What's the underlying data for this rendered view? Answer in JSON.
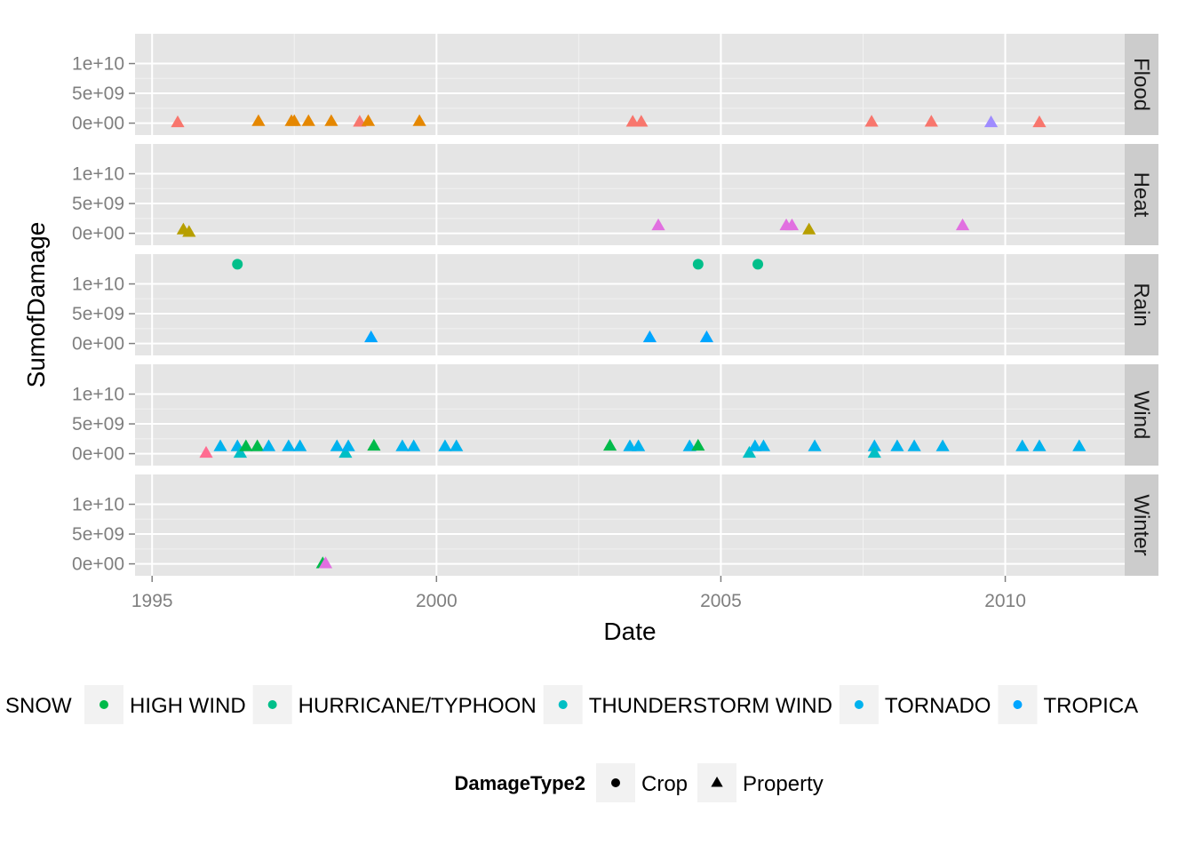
{
  "chart_data": {
    "type": "scatter",
    "xlabel": "Date",
    "ylabel": "SumofDamage",
    "x_ticks": [
      "1995",
      "2000",
      "2005",
      "2010"
    ],
    "x_tick_values": [
      1995,
      2000,
      2005,
      2010
    ],
    "xlim": [
      1994.7,
      2012.1
    ],
    "ylim": [
      -2000000000,
      15000000000
    ],
    "y_ticks": [
      "0e+00",
      "5e+09",
      "1e+10"
    ],
    "y_tick_values": [
      0,
      5000000000,
      10000000000
    ],
    "grid": true,
    "legend_position": "bottom",
    "legend_color_items": [
      {
        "label": "SNOW",
        "color": "#E16FE0"
      },
      {
        "label": "HIGH WIND",
        "color": "#00BA4A"
      },
      {
        "label": "HURRICANE/TYPHOON",
        "color": "#00BF8A"
      },
      {
        "label": "THUNDERSTORM WIND",
        "color": "#00BFC4"
      },
      {
        "label": "TORNADO",
        "color": "#00B2EE"
      },
      {
        "label": "TROPICA",
        "color": "#00A5FF"
      }
    ],
    "legend_shape_title": "DamageType2",
    "legend_shape_items": [
      {
        "label": "Crop",
        "shape": "circle"
      },
      {
        "label": "Property",
        "shape": "triangle"
      }
    ],
    "panels": [
      {
        "name": "Flood",
        "points": [
          {
            "x": 1995.45,
            "y": 100000000,
            "color": "#F8766D",
            "shape": "triangle"
          },
          {
            "x": 1996.87,
            "y": 300000000,
            "color": "#E58700",
            "shape": "triangle"
          },
          {
            "x": 1997.45,
            "y": 300000000,
            "color": "#E58700",
            "shape": "triangle"
          },
          {
            "x": 1997.5,
            "y": 300000000,
            "color": "#E58700",
            "shape": "triangle"
          },
          {
            "x": 1997.75,
            "y": 300000000,
            "color": "#E58700",
            "shape": "triangle"
          },
          {
            "x": 1998.15,
            "y": 300000000,
            "color": "#E58700",
            "shape": "triangle"
          },
          {
            "x": 1998.65,
            "y": 200000000,
            "color": "#F8766D",
            "shape": "triangle"
          },
          {
            "x": 1998.8,
            "y": 300000000,
            "color": "#E58700",
            "shape": "triangle"
          },
          {
            "x": 1999.7,
            "y": 300000000,
            "color": "#E58700",
            "shape": "triangle"
          },
          {
            "x": 2003.45,
            "y": 200000000,
            "color": "#F8766D",
            "shape": "triangle"
          },
          {
            "x": 2003.6,
            "y": 200000000,
            "color": "#F8766D",
            "shape": "triangle"
          },
          {
            "x": 2007.65,
            "y": 200000000,
            "color": "#F8766D",
            "shape": "triangle"
          },
          {
            "x": 2008.7,
            "y": 200000000,
            "color": "#F8766D",
            "shape": "triangle"
          },
          {
            "x": 2009.75,
            "y": 100000000,
            "color": "#9F8CFF",
            "shape": "triangle"
          },
          {
            "x": 2010.6,
            "y": 100000000,
            "color": "#F8766D",
            "shape": "triangle"
          }
        ]
      },
      {
        "name": "Heat",
        "points": [
          {
            "x": 1995.55,
            "y": 600000000,
            "color": "#B79F00",
            "shape": "triangle"
          },
          {
            "x": 1995.65,
            "y": 200000000,
            "color": "#B79F00",
            "shape": "triangle"
          },
          {
            "x": 2003.9,
            "y": 1300000000,
            "color": "#E16FE0",
            "shape": "triangle"
          },
          {
            "x": 2006.15,
            "y": 1300000000,
            "color": "#E16FE0",
            "shape": "triangle"
          },
          {
            "x": 2006.25,
            "y": 1300000000,
            "color": "#E16FE0",
            "shape": "triangle"
          },
          {
            "x": 2006.55,
            "y": 600000000,
            "color": "#B79F00",
            "shape": "triangle"
          },
          {
            "x": 2009.25,
            "y": 1300000000,
            "color": "#E16FE0",
            "shape": "triangle"
          }
        ]
      },
      {
        "name": "Rain",
        "points": [
          {
            "x": 1996.5,
            "y": 13300000000,
            "color": "#00BF8A",
            "shape": "circle"
          },
          {
            "x": 2004.6,
            "y": 13300000000,
            "color": "#00BF8A",
            "shape": "circle"
          },
          {
            "x": 2005.65,
            "y": 13300000000,
            "color": "#00BF8A",
            "shape": "circle"
          },
          {
            "x": 1998.85,
            "y": 1000000000,
            "color": "#00A5FF",
            "shape": "triangle"
          },
          {
            "x": 2003.75,
            "y": 1000000000,
            "color": "#00A5FF",
            "shape": "triangle"
          },
          {
            "x": 2004.75,
            "y": 1000000000,
            "color": "#00A5FF",
            "shape": "triangle"
          }
        ]
      },
      {
        "name": "Wind",
        "points": [
          {
            "x": 1995.95,
            "y": 100000000,
            "color": "#FF6C91",
            "shape": "triangle"
          },
          {
            "x": 1996.2,
            "y": 1200000000,
            "color": "#00B2EE",
            "shape": "triangle"
          },
          {
            "x": 1996.5,
            "y": 1200000000,
            "color": "#00B2EE",
            "shape": "triangle"
          },
          {
            "x": 1996.55,
            "y": 100000000,
            "color": "#00BFC4",
            "shape": "triangle"
          },
          {
            "x": 1996.65,
            "y": 1200000000,
            "color": "#00BA4A",
            "shape": "triangle"
          },
          {
            "x": 1996.85,
            "y": 1200000000,
            "color": "#00BA4A",
            "shape": "triangle"
          },
          {
            "x": 1997.05,
            "y": 1200000000,
            "color": "#00B2EE",
            "shape": "triangle"
          },
          {
            "x": 1997.4,
            "y": 1200000000,
            "color": "#00B2EE",
            "shape": "triangle"
          },
          {
            "x": 1997.6,
            "y": 1200000000,
            "color": "#00B2EE",
            "shape": "triangle"
          },
          {
            "x": 1998.25,
            "y": 1200000000,
            "color": "#00B2EE",
            "shape": "triangle"
          },
          {
            "x": 1998.4,
            "y": 100000000,
            "color": "#00BFC4",
            "shape": "triangle"
          },
          {
            "x": 1998.45,
            "y": 1200000000,
            "color": "#00B2EE",
            "shape": "triangle"
          },
          {
            "x": 1998.9,
            "y": 1300000000,
            "color": "#00BA4A",
            "shape": "triangle"
          },
          {
            "x": 1999.4,
            "y": 1200000000,
            "color": "#00B2EE",
            "shape": "triangle"
          },
          {
            "x": 1999.6,
            "y": 1200000000,
            "color": "#00B2EE",
            "shape": "triangle"
          },
          {
            "x": 2000.15,
            "y": 1200000000,
            "color": "#00B2EE",
            "shape": "triangle"
          },
          {
            "x": 2000.35,
            "y": 1200000000,
            "color": "#00B2EE",
            "shape": "triangle"
          },
          {
            "x": 2003.05,
            "y": 1300000000,
            "color": "#00BA4A",
            "shape": "triangle"
          },
          {
            "x": 2003.4,
            "y": 1200000000,
            "color": "#00B2EE",
            "shape": "triangle"
          },
          {
            "x": 2003.55,
            "y": 1200000000,
            "color": "#00B2EE",
            "shape": "triangle"
          },
          {
            "x": 2004.45,
            "y": 1200000000,
            "color": "#00B2EE",
            "shape": "triangle"
          },
          {
            "x": 2004.6,
            "y": 1300000000,
            "color": "#00BA4A",
            "shape": "triangle"
          },
          {
            "x": 2005.5,
            "y": 100000000,
            "color": "#00BFC4",
            "shape": "triangle"
          },
          {
            "x": 2005.6,
            "y": 1200000000,
            "color": "#00B2EE",
            "shape": "triangle"
          },
          {
            "x": 2005.75,
            "y": 1200000000,
            "color": "#00B2EE",
            "shape": "triangle"
          },
          {
            "x": 2006.65,
            "y": 1200000000,
            "color": "#00B2EE",
            "shape": "triangle"
          },
          {
            "x": 2007.7,
            "y": 1200000000,
            "color": "#00B2EE",
            "shape": "triangle"
          },
          {
            "x": 2007.7,
            "y": 100000000,
            "color": "#00BFC4",
            "shape": "triangle"
          },
          {
            "x": 2008.1,
            "y": 1200000000,
            "color": "#00B2EE",
            "shape": "triangle"
          },
          {
            "x": 2008.4,
            "y": 1200000000,
            "color": "#00B2EE",
            "shape": "triangle"
          },
          {
            "x": 2008.9,
            "y": 1200000000,
            "color": "#00B2EE",
            "shape": "triangle"
          },
          {
            "x": 2010.3,
            "y": 1200000000,
            "color": "#00B2EE",
            "shape": "triangle"
          },
          {
            "x": 2010.6,
            "y": 1200000000,
            "color": "#00B2EE",
            "shape": "triangle"
          },
          {
            "x": 2011.3,
            "y": 1200000000,
            "color": "#00B2EE",
            "shape": "triangle"
          }
        ]
      },
      {
        "name": "Winter",
        "points": [
          {
            "x": 1998.0,
            "y": 50000000,
            "color": "#00BA4A",
            "shape": "triangle"
          },
          {
            "x": 1998.05,
            "y": 50000000,
            "color": "#E16FE0",
            "shape": "triangle"
          }
        ]
      }
    ]
  }
}
